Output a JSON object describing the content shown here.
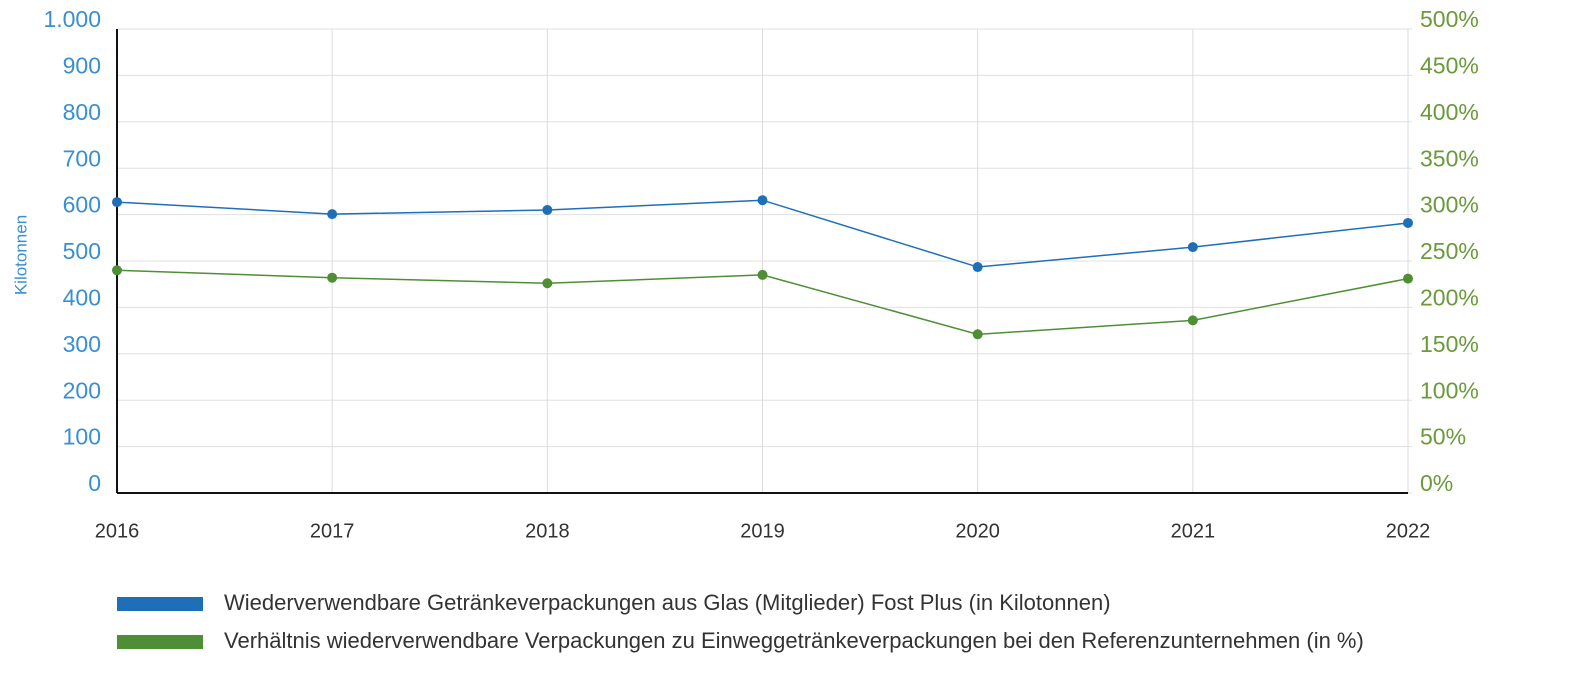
{
  "chart_data": {
    "type": "line",
    "categories": [
      "2016",
      "2017",
      "2018",
      "2019",
      "2020",
      "2021",
      "2022"
    ],
    "y_label": "Kilotonnen",
    "ylim": [
      0,
      1000
    ],
    "yticks": [
      0,
      100,
      200,
      300,
      400,
      500,
      600,
      700,
      800,
      900,
      {
        "value": 1000,
        "label": "1.000"
      }
    ],
    "y2lim": [
      0,
      500
    ],
    "y2ticks": [
      {
        "value": 0,
        "label": "0%"
      },
      {
        "value": 50,
        "label": "50%"
      },
      {
        "value": 100,
        "label": "100%"
      },
      {
        "value": 150,
        "label": "150%"
      },
      {
        "value": 200,
        "label": "200%"
      },
      {
        "value": 250,
        "label": "250%"
      },
      {
        "value": 300,
        "label": "300%"
      },
      {
        "value": 350,
        "label": "350%"
      },
      {
        "value": 400,
        "label": "400%"
      },
      {
        "value": 450,
        "label": "450%"
      },
      {
        "value": 500,
        "label": "500%"
      }
    ],
    "grid": true,
    "legend": "bottom",
    "series": [
      {
        "name": "Wiederverwendbare Getränkeverpackungen aus Glas (Mitglieder) Fost Plus (in Kilotonnen)",
        "color": "#1f6fb8",
        "values": [
          627,
          601,
          610,
          631,
          487,
          530,
          582
        ]
      },
      {
        "name": "Verhältnis wiederverwendbare Verpackungen zu Einweggetränkeverpackungen bei den Referenzunternehmen (in %)",
        "color": "#4e8f35",
        "axis": "y2",
        "values": [
          240,
          232,
          226,
          235,
          171,
          186,
          231
        ]
      }
    ]
  }
}
